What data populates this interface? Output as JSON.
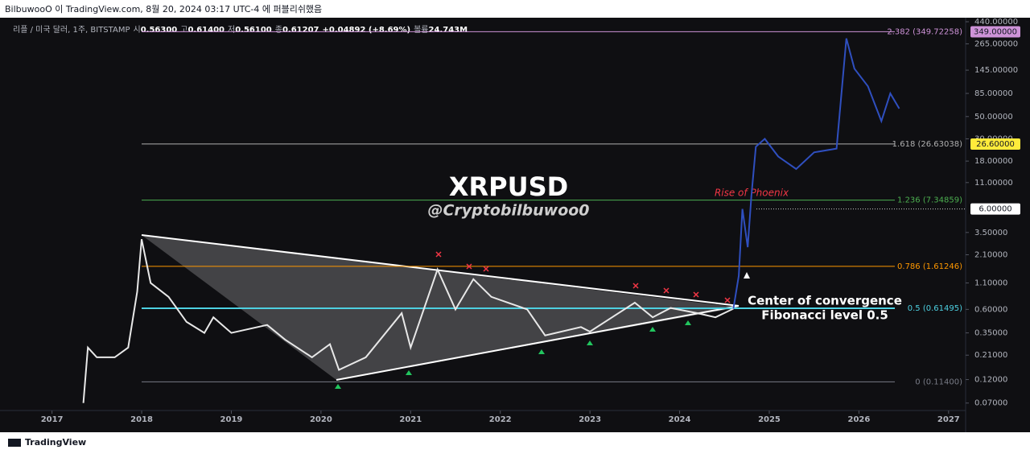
{
  "chart_data": {
    "type": "line",
    "source_line": "BilbuwooO 이 TradingView.com, 8월 20, 2024 03:17 UTC-4 에 퍼블리쉬했음",
    "symbol_info": {
      "symbol": "리플 / 미국 달러, 1주, BITSTAMP",
      "ohlc": [
        {
          "label": "시",
          "value": "0.56300"
        },
        {
          "label": "고",
          "value": "0.61400"
        },
        {
          "label": "저",
          "value": "0.56100"
        },
        {
          "label": "종",
          "value": "0.61207"
        }
      ],
      "change": "+0.04892 (+8.69%)",
      "volume_label": "볼륨",
      "volume": "24.743M"
    },
    "title": "XRPUSD",
    "subtitle": "@Cryptobilbuwoo0",
    "annotations": [
      "Rise of Phoenix",
      "Center of convergence",
      "Fibonacci level 0.5"
    ],
    "footer": "TradingView",
    "y_scale": "log",
    "grid": false,
    "xlim": [
      2016.42,
      2027.19
    ],
    "xticks": [
      2017,
      2018,
      2019,
      2020,
      2021,
      2022,
      2023,
      2024,
      2025,
      2026,
      2027
    ],
    "ylim": [
      0.059,
      465
    ],
    "yticks": [
      {
        "value": 0.07,
        "label": "0.07000"
      },
      {
        "value": 0.12,
        "label": "0.12000"
      },
      {
        "value": 0.21,
        "label": "0.21000"
      },
      {
        "value": 0.35,
        "label": "0.35000"
      },
      {
        "value": 0.6,
        "label": "0.60000"
      },
      {
        "value": 1.1,
        "label": "1.10000"
      },
      {
        "value": 2.1,
        "label": "2.10000"
      },
      {
        "value": 3.5,
        "label": "3.50000"
      },
      {
        "value": 11,
        "label": "11.00000"
      },
      {
        "value": 18,
        "label": "18.00000"
      },
      {
        "value": 30,
        "label": "30.00000"
      },
      {
        "value": 50,
        "label": "50.00000"
      },
      {
        "value": 85,
        "label": "85.00000"
      },
      {
        "value": 145,
        "label": "145.00000"
      },
      {
        "value": 265,
        "label": "265.00000"
      },
      {
        "value": 440,
        "label": "440.00000"
      }
    ],
    "series": [
      {
        "color": "#e8e8e8",
        "x": [
          2017.35,
          2017.4,
          2017.5,
          2017.7,
          2017.85,
          2017.95,
          2018.0,
          2018.1,
          2018.3,
          2018.5,
          2018.7,
          2018.8,
          2019.0,
          2019.4,
          2019.6,
          2019.9,
          2020.1,
          2020.2,
          2020.5,
          2020.9,
          2021.0,
          2021.3,
          2021.5,
          2021.7,
          2021.9,
          2022.3,
          2022.5,
          2022.9,
          2023.0,
          2023.5,
          2023.7,
          2023.9,
          2024.2,
          2024.4,
          2024.6
        ],
        "values": [
          0.07,
          0.25,
          0.2,
          0.2,
          0.25,
          0.9,
          3.0,
          1.1,
          0.8,
          0.45,
          0.35,
          0.5,
          0.35,
          0.42,
          0.3,
          0.2,
          0.27,
          0.15,
          0.2,
          0.55,
          0.25,
          1.5,
          0.6,
          1.2,
          0.8,
          0.6,
          0.33,
          0.4,
          0.36,
          0.7,
          0.5,
          0.62,
          0.55,
          0.5,
          0.61
        ]
      },
      {
        "color": "#2f4fbf",
        "x": [
          2024.6,
          2024.66,
          2024.7,
          2024.76,
          2024.8,
          2024.85,
          2024.95,
          2025.1,
          2025.3,
          2025.5,
          2025.75,
          2025.86,
          2025.95,
          2026.1,
          2026.25,
          2026.35,
          2026.45
        ],
        "values": [
          0.61,
          1.3,
          6.0,
          2.5,
          8,
          25,
          30,
          20,
          15,
          22,
          24,
          300,
          150,
          100,
          45,
          85,
          60
        ]
      }
    ],
    "fib_levels": [
      {
        "value": 349.72258,
        "label": "2.382 (349.72258)",
        "color": "#ce93d8"
      },
      {
        "value": 26.63038,
        "label": "1.618 (26.63038)",
        "color": "#b0b0b0"
      },
      {
        "value": 7.34859,
        "label": "1.236 (7.34859)",
        "color": "#4caf50"
      },
      {
        "value": 1.61246,
        "label": "0.786 (1.61246)",
        "color": "#ff9800"
      },
      {
        "value": 0.61495,
        "label": "0.5 (0.61495)",
        "color": "#4dd0e1"
      },
      {
        "value": 0.114,
        "label": "0 (0.11400)",
        "color": "#787b86"
      }
    ],
    "price_tags": [
      {
        "value": 349,
        "label": "349.00000",
        "color": "#ce93d8"
      },
      {
        "value": 26.6,
        "label": "26.60000",
        "color": "#ffeb3b"
      },
      {
        "value": 6,
        "label": "6.00000",
        "color": "#ffffff"
      }
    ]
  }
}
